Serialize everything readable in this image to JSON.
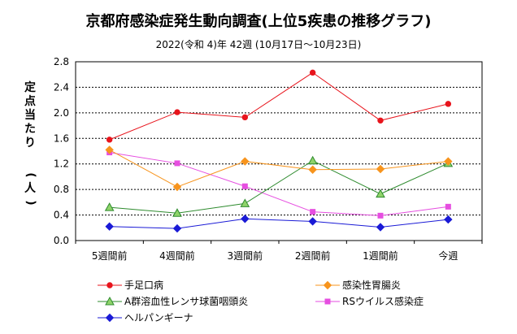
{
  "page": {
    "title": "京都府感染症発生動向調査(上位5疾患の推移グラフ)",
    "subtitle": "2022(令和 4)年 42週 (10月17日～10月23日)"
  },
  "chart_data": {
    "type": "line",
    "title": "京都府感染症発生動向調査(上位5疾患の推移グラフ)",
    "subtitle": "2022(令和 4)年 42週 (10月17日～10月23日)",
    "xlabel": "",
    "ylabel": "定点当たり (人)",
    "categories": [
      "5週間前",
      "4週間前",
      "3週間前",
      "2週間前",
      "1週間前",
      "今週"
    ],
    "ylim": [
      0,
      2.8
    ],
    "yticks": [
      "0.0",
      "0.4",
      "0.8",
      "1.2",
      "1.6",
      "2.0",
      "2.4",
      "2.8"
    ],
    "grid": true,
    "legend_position": "bottom",
    "series": [
      {
        "name": "手足口病",
        "color": "#e8141c",
        "marker": "circle",
        "values": [
          1.58,
          2.01,
          1.93,
          2.63,
          1.88,
          2.14
        ]
      },
      {
        "name": "感染性胃腸炎",
        "color": "#f7941d",
        "marker": "diamond",
        "values": [
          1.42,
          0.84,
          1.24,
          1.11,
          1.12,
          1.24
        ]
      },
      {
        "name": "A群溶血性レンサ球菌咽頭炎",
        "color": "#2e8b2e",
        "marker": "triangle",
        "values": [
          0.52,
          0.43,
          0.58,
          1.25,
          0.73,
          1.21
        ]
      },
      {
        "name": "RSウイルス感染症",
        "color": "#e64ee0",
        "marker": "square",
        "values": [
          1.38,
          1.21,
          0.85,
          0.45,
          0.39,
          0.53
        ]
      },
      {
        "name": "ヘルパンギーナ",
        "color": "#1a1ad6",
        "marker": "diamond",
        "values": [
          0.22,
          0.19,
          0.34,
          0.3,
          0.21,
          0.33
        ]
      }
    ]
  }
}
